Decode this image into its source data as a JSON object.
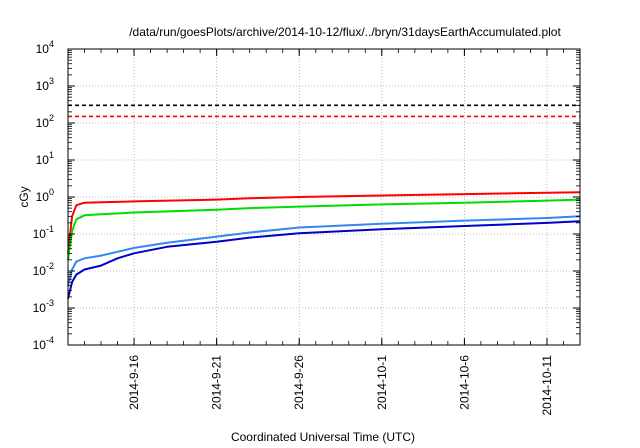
{
  "chart_data": {
    "type": "line",
    "title": "/data/run/goesPlots/archive/2014-10-12/flux/../bryn/31daysEarthAccumulated.plot",
    "xlabel": "Coordinated Universal Time (UTC)",
    "ylabel": "cGy",
    "yscale": "log",
    "ylim": [
      0.0001,
      10000
    ],
    "xlim": [
      "2014-09-12",
      "2014-10-13"
    ],
    "grid": true,
    "x_ticks": [
      "2014-9-16",
      "2014-9-21",
      "2014-9-26",
      "2014-10-1",
      "2014-10-6",
      "2014-10-11"
    ],
    "y_ticks": [
      {
        "value": 0.0001,
        "base": "10",
        "exp": "-4"
      },
      {
        "value": 0.001,
        "base": "10",
        "exp": "-3"
      },
      {
        "value": 0.01,
        "base": "10",
        "exp": "-2"
      },
      {
        "value": 0.1,
        "base": "10",
        "exp": "-1"
      },
      {
        "value": 1,
        "base": "10",
        "exp": "0"
      },
      {
        "value": 10,
        "base": "10",
        "exp": "1"
      },
      {
        "value": 100,
        "base": "10",
        "exp": "2"
      },
      {
        "value": 1000,
        "base": "10",
        "exp": "3"
      },
      {
        "value": 10000,
        "base": "10",
        "exp": "4"
      }
    ],
    "thresholds": [
      {
        "value": 300,
        "color": "#000000",
        "dash": true
      },
      {
        "value": 150,
        "color": "#ff0000",
        "dash": true
      }
    ],
    "series": [
      {
        "color": "#ff0000",
        "x": [
          "2014-09-12",
          "2014-09-12T06:00",
          "2014-09-12T12:00",
          "2014-09-13",
          "2014-09-14",
          "2014-09-16",
          "2014-09-21",
          "2014-09-23",
          "2014-09-26",
          "2014-10-01",
          "2014-10-06",
          "2014-10-11",
          "2014-10-13"
        ],
        "values": [
          0.03,
          0.3,
          0.6,
          0.7,
          0.72,
          0.76,
          0.85,
          0.92,
          1.0,
          1.1,
          1.2,
          1.3,
          1.35
        ]
      },
      {
        "color": "#00dd00",
        "x": [
          "2014-09-12",
          "2014-09-12T06:00",
          "2014-09-12T12:00",
          "2014-09-13",
          "2014-09-14",
          "2014-09-16",
          "2014-09-21",
          "2014-09-23",
          "2014-09-26",
          "2014-10-01",
          "2014-10-06",
          "2014-10-11",
          "2014-10-13"
        ],
        "values": [
          0.02,
          0.12,
          0.25,
          0.32,
          0.34,
          0.38,
          0.45,
          0.5,
          0.55,
          0.63,
          0.7,
          0.8,
          0.85
        ]
      },
      {
        "color": "#3388ee",
        "x": [
          "2014-09-12",
          "2014-09-12T06:00",
          "2014-09-12T12:00",
          "2014-09-13",
          "2014-09-14",
          "2014-09-15",
          "2014-09-16",
          "2014-09-18",
          "2014-09-21",
          "2014-09-23",
          "2014-09-26",
          "2014-10-01",
          "2014-10-06",
          "2014-10-11",
          "2014-10-13"
        ],
        "values": [
          0.004,
          0.011,
          0.018,
          0.022,
          0.026,
          0.033,
          0.042,
          0.058,
          0.085,
          0.11,
          0.15,
          0.19,
          0.23,
          0.27,
          0.3
        ]
      },
      {
        "color": "#0000cc",
        "x": [
          "2014-09-12",
          "2014-09-12T06:00",
          "2014-09-12T12:00",
          "2014-09-13",
          "2014-09-14",
          "2014-09-15",
          "2014-09-16",
          "2014-09-18",
          "2014-09-21",
          "2014-09-23",
          "2014-09-26",
          "2014-10-01",
          "2014-10-06",
          "2014-10-11",
          "2014-10-13"
        ],
        "values": [
          0.0018,
          0.005,
          0.008,
          0.011,
          0.014,
          0.022,
          0.03,
          0.045,
          0.062,
          0.08,
          0.105,
          0.135,
          0.165,
          0.2,
          0.22
        ]
      }
    ]
  }
}
